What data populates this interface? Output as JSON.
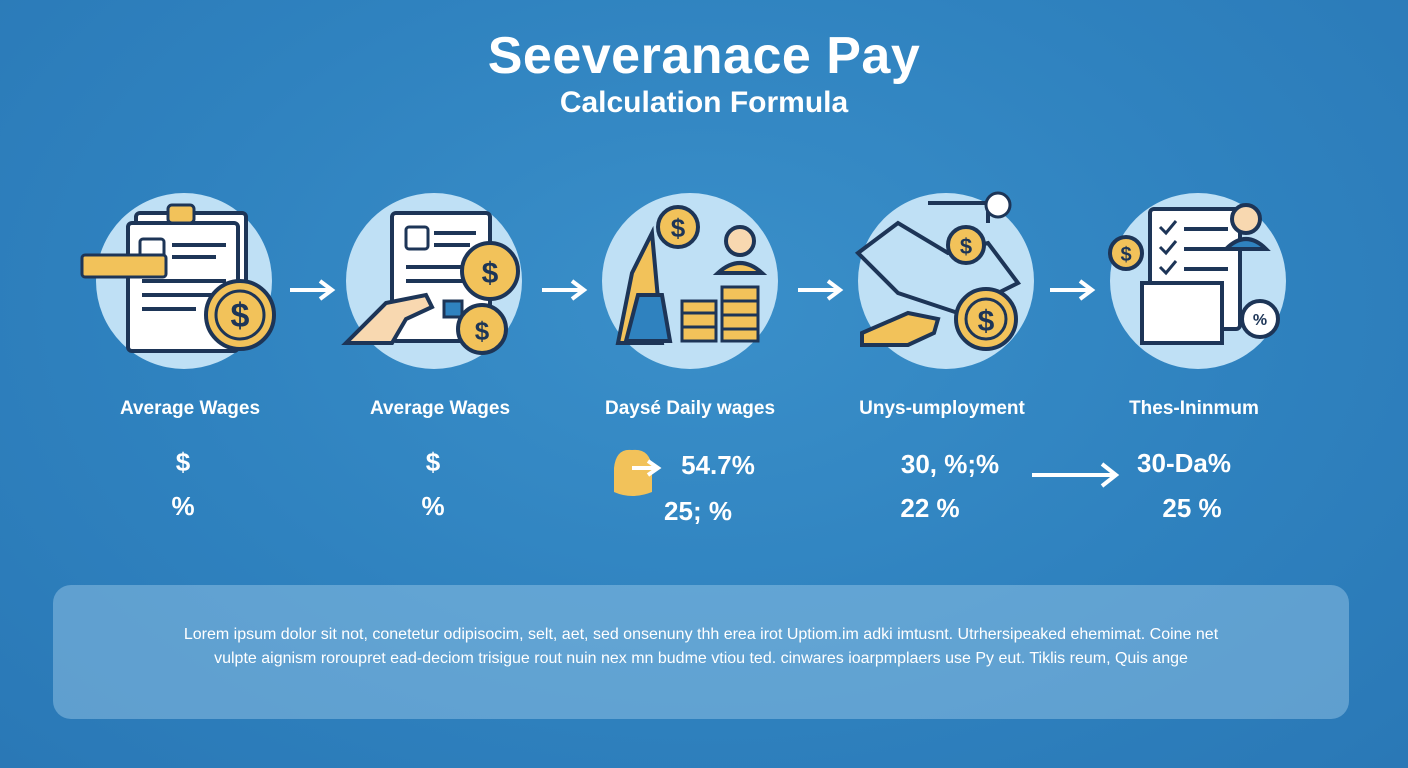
{
  "header": {
    "title": "Seeveranace Pay",
    "subtitle": "Calculation Formula"
  },
  "colors": {
    "background": "#2f82bf",
    "circle": "#bfe0f5",
    "coin": "#f2c25a",
    "outline": "#1d3557"
  },
  "steps": [
    {
      "label": "Average Wages",
      "icon": "wage-document-coin-icon",
      "values": [
        "$",
        "%"
      ]
    },
    {
      "label": "Average Wages",
      "icon": "hand-document-coins-icon",
      "values": [
        "$",
        "%"
      ]
    },
    {
      "label": "Daysé Daily wages",
      "icon": "worker-coin-stacks-icon",
      "values": [
        "54.7%",
        "25; %"
      ]
    },
    {
      "label": "Unys-umployment",
      "icon": "handshake-coin-icon",
      "values": [
        "30, %;%",
        "22 %"
      ]
    },
    {
      "label": "Thes-Ininmum",
      "icon": "checklist-person-percent-icon",
      "values": [
        "30-Da%",
        "25 %"
      ]
    }
  ],
  "footer": {
    "line1": "Lorem ipsum dolor sit not, conetetur odipisocim, selt, aet, sed onsenuny thh erea irot Uptiom.im adki imtusnt. Utrhersipeaked ehemimat. Coine net",
    "line2": "vulpte aignism roroupret ead-deciom trisigue rout nuin nex mn budme vtiou ted. cinwares ioarpmplaers use Py eut. Tiklis reum, Quis ange"
  }
}
